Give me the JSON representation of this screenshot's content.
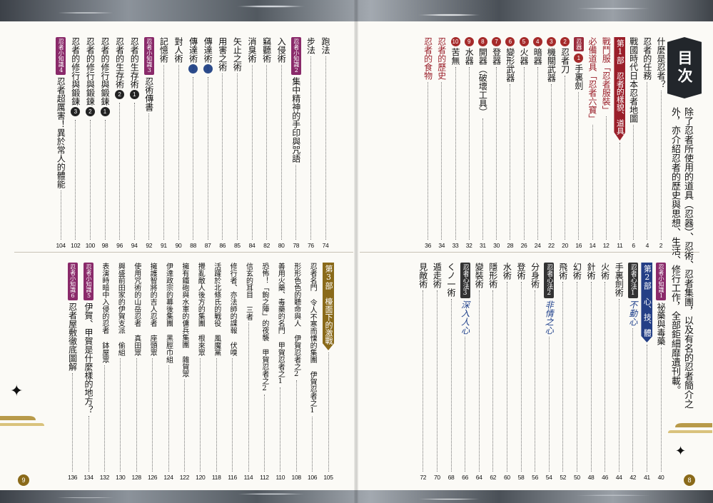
{
  "title": "目次",
  "intro_lines": [
    "除了忍者所使用的道具（忍器）、忍術、忍者集團，以及有名的忍者簡介之",
    "外，亦介紹忍者的歷史與思想、生活、修行工作，全部鉅細靡遺刊載。"
  ],
  "folio_left": "9",
  "folio_right": "8",
  "right_upper": [
    {
      "kind": "entry",
      "text": "什麼是忍者？",
      "page": "2"
    },
    {
      "kind": "entry",
      "text": "忍者的任務",
      "page": "4"
    },
    {
      "kind": "entry",
      "text": "戰國時代日本忍者地圖",
      "page": "6"
    },
    {
      "kind": "part",
      "label": "第1部",
      "text": "忍者的樣貌、道具",
      "page": "11"
    },
    {
      "kind": "entry",
      "text": "戰鬥服「忍者服裝」",
      "page": "12",
      "style": "red"
    },
    {
      "kind": "entry",
      "text": "必備道具「忍者六寶」",
      "page": "14",
      "style": "red"
    },
    {
      "kind": "sub",
      "tag": "忍器",
      "num": "1",
      "text": "手裏劍",
      "page": "16"
    },
    {
      "kind": "sub",
      "num": "2",
      "text": "忍者刀",
      "page": "20"
    },
    {
      "kind": "sub",
      "num": "3",
      "text": "機關武器",
      "page": "22"
    },
    {
      "kind": "sub",
      "num": "4",
      "text": "暗器",
      "page": "24"
    },
    {
      "kind": "sub",
      "num": "5",
      "text": "火器",
      "page": "26"
    },
    {
      "kind": "sub",
      "num": "6",
      "text": "變形武器",
      "page": "28"
    },
    {
      "kind": "sub",
      "num": "7",
      "text": "登器",
      "page": "30"
    },
    {
      "kind": "sub",
      "num": "8",
      "text": "開器（破壞工具）",
      "page": "31"
    },
    {
      "kind": "sub",
      "num": "9",
      "text": "水器",
      "page": "32"
    },
    {
      "kind": "sub",
      "num": "10",
      "text": "苦無",
      "page": "33"
    },
    {
      "kind": "entry",
      "text": "忍者的歷史",
      "page": "34",
      "style": "red"
    },
    {
      "kind": "entry",
      "text": "忍者的食物",
      "page": "36",
      "style": "red"
    }
  ],
  "right_lower": [
    {
      "kind": "tagentry",
      "tag": "忍者小知識1",
      "text": "祕藥與毒藥",
      "page": "40"
    },
    {
      "kind": "part",
      "label": "第2部",
      "text": "心、技、體",
      "page": "41",
      "color": "blue"
    },
    {
      "kind": "hw",
      "tag": "忍者心法1",
      "text": "不動心",
      "page": "42"
    },
    {
      "kind": "entry",
      "text": "手裏劍術",
      "page": "44"
    },
    {
      "kind": "entry",
      "text": "火術",
      "page": "46"
    },
    {
      "kind": "entry",
      "text": "針術",
      "page": "48"
    },
    {
      "kind": "entry",
      "text": "幻術",
      "page": "50"
    },
    {
      "kind": "entry",
      "text": "飛術",
      "page": "52"
    },
    {
      "kind": "hw",
      "tag": "忍者心法2",
      "text": "非情之心",
      "page": "54"
    },
    {
      "kind": "entry",
      "text": "分身術",
      "page": "56"
    },
    {
      "kind": "entry",
      "text": "登術",
      "page": "58"
    },
    {
      "kind": "entry",
      "text": "水術",
      "page": "60"
    },
    {
      "kind": "entry",
      "text": "隱形術",
      "page": "62"
    },
    {
      "kind": "entry",
      "text": "變裝術",
      "page": "64"
    },
    {
      "kind": "hw",
      "tag": "忍者心法3",
      "text": "深入人心",
      "page": "66"
    },
    {
      "kind": "entry",
      "text": "くノ一術",
      "page": "68"
    },
    {
      "kind": "entry",
      "text": "遁走術",
      "page": "70"
    },
    {
      "kind": "entry",
      "text": "見敵術",
      "page": "72"
    }
  ],
  "left_upper": [
    {
      "kind": "entry",
      "text": "跑法",
      "page": "74"
    },
    {
      "kind": "entry",
      "text": "步法",
      "page": "76"
    },
    {
      "kind": "tagentry",
      "tag": "忍者小知識2",
      "text": "集中精神的手印與咒語",
      "page": "78"
    },
    {
      "kind": "entry",
      "text": "入侵術",
      "page": "80"
    },
    {
      "kind": "entry",
      "text": "竊聽術",
      "page": "82"
    },
    {
      "kind": "entry",
      "text": "消臭術",
      "page": "84"
    },
    {
      "kind": "entry",
      "text": "矢止之術",
      "page": "85"
    },
    {
      "kind": "entry",
      "text": "用害之術",
      "page": "86"
    },
    {
      "kind": "sub",
      "text": "傳達術",
      "num": "1",
      "numpos": "after",
      "page": "87",
      "bluenum": true
    },
    {
      "kind": "sub",
      "text": "傳達術",
      "num": "2",
      "numpos": "after",
      "page": "88",
      "bluenum": true
    },
    {
      "kind": "entry",
      "text": "對人術",
      "page": "90"
    },
    {
      "kind": "entry",
      "text": "記憶術",
      "page": "91"
    },
    {
      "kind": "tagentry",
      "tag": "忍者小知識3",
      "text": "忍術傳書",
      "page": "92"
    },
    {
      "kind": "sub",
      "text": "忍者的生存術",
      "num": "1",
      "numpos": "after",
      "page": "94",
      "darknum": true
    },
    {
      "kind": "sub",
      "text": "忍者的生存術",
      "num": "2",
      "numpos": "after",
      "page": "96",
      "darknum": true
    },
    {
      "kind": "sub",
      "text": "忍者的修行與鍛鍊",
      "num": "1",
      "numpos": "after",
      "page": "98",
      "darknum": true
    },
    {
      "kind": "sub",
      "text": "忍者的修行與鍛鍊",
      "num": "2",
      "numpos": "after",
      "page": "100",
      "darknum": true
    },
    {
      "kind": "sub",
      "text": "忍者的修行與鍛鍊",
      "num": "3",
      "numpos": "after",
      "page": "102",
      "darknum": true
    },
    {
      "kind": "tagentry",
      "tag": "忍者小知識4",
      "text": "忍者超厲害！異於常人的體能",
      "page": "104"
    }
  ],
  "left_lower": [
    {
      "kind": "part",
      "label": "第3部",
      "text": "檯面下的激戰",
      "page": "105",
      "color": "gold"
    },
    {
      "kind": "entry",
      "text": "忍者名門 令人不寒而慄的集團 伊賀忍者之1",
      "page": "106",
      "small": true
    },
    {
      "kind": "entry",
      "text": "形形色色的聽命與人 伊賀忍者之2",
      "page": "108",
      "small": true
    },
    {
      "kind": "entry",
      "text": "善用火藥、毒藥的名門 甲賀忍者之1",
      "page": "110",
      "small": true
    },
    {
      "kind": "entry",
      "text": "恐怖！「鉤之陣」的夜襲 甲賀忍者之2",
      "page": "112",
      "small": true
    },
    {
      "kind": "entry",
      "text": "信玄的耳目 三者",
      "page": "114",
      "small": true
    },
    {
      "kind": "entry",
      "text": "修行者、亦法師的諜報 伏嗅",
      "page": "116",
      "small": true
    },
    {
      "kind": "entry",
      "text": "活躍於北條氏的戰役 風魔黨",
      "page": "118",
      "small": true
    },
    {
      "kind": "entry",
      "text": "攪亂敵人後方的集團 根來眾",
      "page": "120",
      "small": true
    },
    {
      "kind": "entry",
      "text": "擁有鐵砲與水軍的傭兵集團 雜賀眾",
      "page": "122",
      "small": true
    },
    {
      "kind": "entry",
      "text": "伊達政宗的幕後集團 黑脛巾組",
      "page": "124",
      "small": true
    },
    {
      "kind": "entry",
      "text": "擁護智將的吉人忍者 座頭眾",
      "page": "126",
      "small": true
    },
    {
      "kind": "entry",
      "text": "使用咒術的山岳忍者 真田眾",
      "page": "128",
      "small": true
    },
    {
      "kind": "entry",
      "text": "興盛前田家的伊賀支派 偷組",
      "page": "130",
      "small": true
    },
    {
      "kind": "entry",
      "text": "表演時暗中入侵的忍者 鉢屋眾",
      "page": "132",
      "small": true
    },
    {
      "kind": "tagentry",
      "tag": "忍者小知識5",
      "text": "伊賀、甲賀是什麼樣的地方？",
      "page": "134"
    },
    {
      "kind": "tagentry",
      "tag": "忍者小知識6",
      "text": "忍者屋敷徹底圖解",
      "page": "136"
    }
  ]
}
